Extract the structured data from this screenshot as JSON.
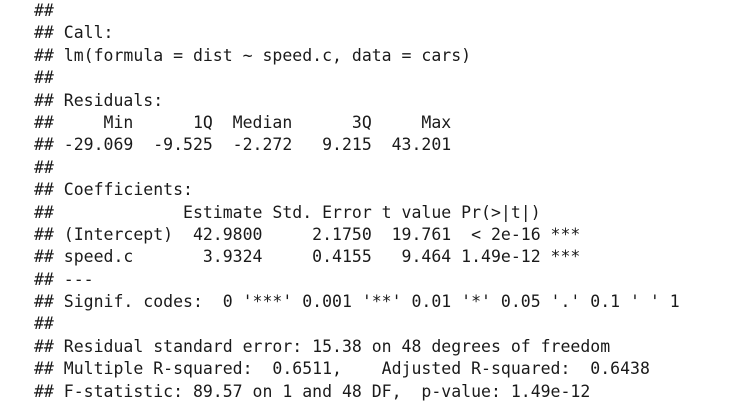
{
  "lines": [
    "##",
    "## Call:",
    "## lm(formula = dist ~ speed.c, data = cars)",
    "##",
    "## Residuals:",
    "##     Min      1Q  Median      3Q     Max",
    "## -29.069  -9.525  -2.272   9.215  43.201",
    "##",
    "## Coefficients:",
    "##             Estimate Std. Error t value Pr(>|t|)",
    "## (Intercept)  42.9800     2.1750  19.761  < 2e-16 ***",
    "## speed.c       3.9324     0.4155   9.464 1.49e-12 ***",
    "## ---",
    "## Signif. codes:  0 '***' 0.001 '**' 0.01 '*' 0.05 '.' 0.1 ' ' 1",
    "##",
    "## Residual standard error: 15.38 on 48 degrees of freedom",
    "## Multiple R-squared:  0.6511,    Adjusted R-squared:  0.6438",
    "## F-statistic: 89.57 on 1 and 48 DF,  p-value: 1.49e-12"
  ]
}
